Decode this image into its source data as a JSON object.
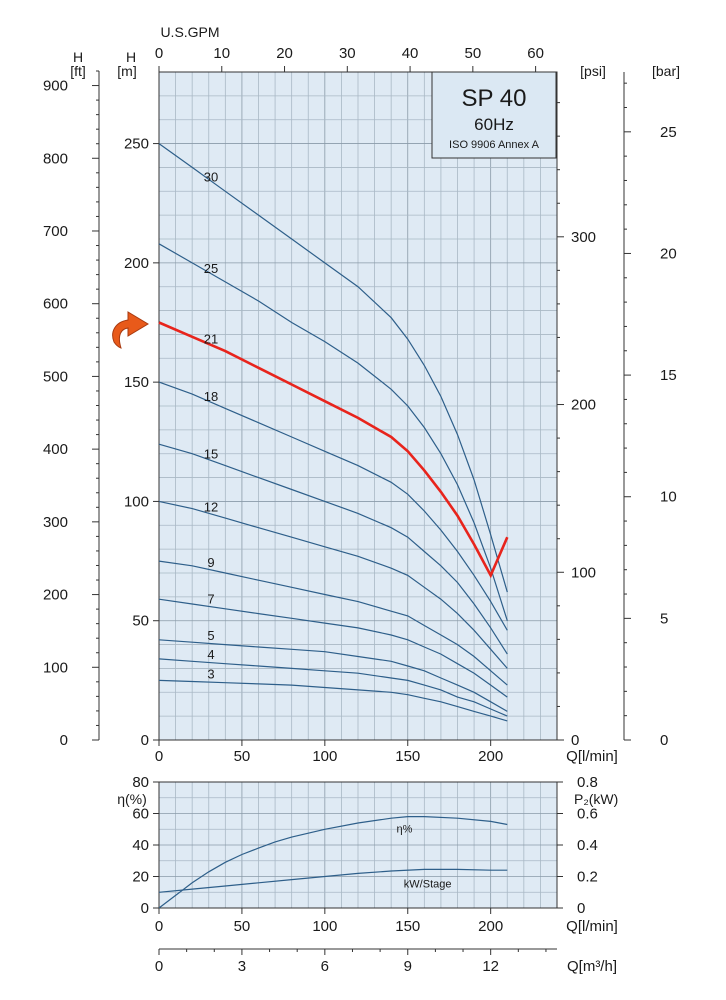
{
  "chart_data": [
    {
      "type": "line",
      "title": "SP 40",
      "subtitle": "60Hz",
      "note": "ISO 9906 Annex A",
      "xlabel": "Q[l/min]",
      "xlim": [
        0,
        240
      ],
      "xticks": [
        0,
        50,
        100,
        150,
        200
      ],
      "top_axis": {
        "label": "U.S.GPM",
        "ticks": [
          0,
          10,
          20,
          30,
          40,
          50,
          60
        ],
        "conversion_to_lmin": 3.785
      },
      "ylabel_m": "H\n[m]",
      "ylabel_m_parts": [
        "H",
        "[m]"
      ],
      "ylim": [
        0,
        280
      ],
      "yticks_m": [
        0,
        50,
        100,
        150,
        200,
        250
      ],
      "ylabel_ft": [
        "H",
        "[ft]"
      ],
      "yticks_ft": [
        0,
        100,
        200,
        300,
        400,
        500,
        600,
        700,
        800,
        900
      ],
      "ylabel_psi": "[psi]",
      "yticks_psi": [
        0,
        100,
        200,
        300
      ],
      "ylabel_bar": "[bar]",
      "yticks_bar": [
        0,
        5,
        10,
        15,
        20,
        25
      ],
      "grid": true,
      "highlight_color": "#e8241c",
      "curve_color": "#2e5f8a",
      "series": [
        {
          "name": "30",
          "highlight": false,
          "x": [
            0,
            20,
            40,
            60,
            80,
            100,
            120,
            140,
            150,
            160,
            170,
            180,
            190,
            200,
            210
          ],
          "y": [
            250,
            240,
            230,
            220,
            210,
            200,
            190,
            177,
            168,
            157,
            144,
            128,
            109,
            86,
            62
          ]
        },
        {
          "name": "25",
          "highlight": false,
          "x": [
            0,
            20,
            40,
            60,
            80,
            100,
            120,
            140,
            150,
            160,
            170,
            180,
            190,
            200,
            210
          ],
          "y": [
            208,
            200,
            192,
            184,
            175,
            167,
            158,
            147,
            140,
            131,
            120,
            107,
            91,
            72,
            50
          ]
        },
        {
          "name": "21",
          "highlight": true,
          "x": [
            0,
            20,
            40,
            60,
            80,
            100,
            120,
            140,
            150,
            160,
            170,
            180,
            190,
            200,
            210
          ],
          "y": [
            175,
            169,
            163,
            156,
            149,
            142,
            135,
            127,
            121,
            113,
            104,
            94,
            82,
            69,
            85
          ]
        },
        {
          "name": "18",
          "highlight": false,
          "x": [
            0,
            20,
            40,
            60,
            80,
            100,
            120,
            140,
            150,
            160,
            170,
            180,
            190,
            200,
            210
          ],
          "y": [
            150,
            145,
            139,
            133,
            127,
            121,
            115,
            108,
            103,
            96,
            88,
            79,
            69,
            58,
            46
          ]
        },
        {
          "name": "15",
          "highlight": false,
          "x": [
            0,
            20,
            40,
            60,
            80,
            100,
            120,
            140,
            150,
            160,
            170,
            180,
            190,
            200,
            210
          ],
          "y": [
            124,
            120,
            115,
            110,
            105,
            100,
            95,
            89,
            85,
            79,
            73,
            66,
            57,
            47,
            36
          ]
        },
        {
          "name": "12",
          "highlight": false,
          "x": [
            0,
            20,
            40,
            60,
            80,
            100,
            120,
            140,
            150,
            160,
            170,
            180,
            190,
            200,
            210
          ],
          "y": [
            100,
            97,
            93,
            89,
            85,
            81,
            77,
            72,
            69,
            64,
            59,
            53,
            46,
            38,
            30
          ]
        },
        {
          "name": "9",
          "highlight": false,
          "x": [
            0,
            20,
            40,
            60,
            80,
            100,
            120,
            140,
            150,
            160,
            170,
            180,
            190,
            200,
            210
          ],
          "y": [
            75,
            73,
            70,
            67,
            64,
            61,
            58,
            54,
            52,
            48,
            44,
            40,
            35,
            29,
            23
          ]
        },
        {
          "name": "7",
          "highlight": false,
          "x": [
            0,
            20,
            40,
            60,
            80,
            100,
            120,
            140,
            150,
            160,
            170,
            180,
            190,
            200,
            210
          ],
          "y": [
            59,
            57,
            55,
            53,
            51,
            49,
            47,
            44,
            42,
            39,
            36,
            32,
            28,
            23,
            18
          ]
        },
        {
          "name": "5",
          "highlight": false,
          "x": [
            0,
            20,
            40,
            60,
            80,
            100,
            120,
            140,
            150,
            160,
            170,
            180,
            190,
            200,
            210
          ],
          "y": [
            42,
            41,
            40,
            39,
            38,
            37,
            35,
            33,
            31,
            29,
            26,
            23,
            20,
            16,
            12
          ]
        },
        {
          "name": "4",
          "highlight": false,
          "x": [
            0,
            20,
            40,
            60,
            80,
            100,
            120,
            140,
            150,
            160,
            170,
            180,
            190,
            200,
            210
          ],
          "y": [
            34,
            33,
            32,
            31,
            30,
            29,
            28,
            26,
            25,
            23,
            21,
            18,
            16,
            13,
            10
          ]
        },
        {
          "name": "3",
          "highlight": false,
          "x": [
            0,
            20,
            40,
            60,
            80,
            100,
            120,
            140,
            150,
            160,
            170,
            180,
            190,
            200,
            210
          ],
          "y": [
            25,
            24.5,
            24,
            23.5,
            23,
            22,
            21,
            20,
            19,
            17.5,
            16,
            14,
            12,
            10,
            8
          ]
        }
      ]
    },
    {
      "type": "line",
      "xlabel": "Q[l/min]",
      "xlim": [
        0,
        240
      ],
      "xticks": [
        0,
        50,
        100,
        150,
        200
      ],
      "ylabel_left": "η(%)",
      "ylim_left": [
        0,
        80
      ],
      "yticks_left": [
        0,
        20,
        40,
        60,
        80
      ],
      "ylabel_right": "P₂(kW)",
      "ylim_right": [
        0,
        0.8
      ],
      "yticks_right": [
        0,
        0.2,
        0.4,
        0.6,
        0.8
      ],
      "bottom_axis": {
        "label": "Q[m³/h]",
        "ticks": [
          0,
          3,
          6,
          9,
          12
        ],
        "conversion_to_lmin": 16.667
      },
      "grid": true,
      "series": [
        {
          "name": "η%",
          "axis": "left",
          "x": [
            0,
            10,
            20,
            30,
            40,
            50,
            60,
            70,
            80,
            100,
            120,
            140,
            150,
            160,
            180,
            200,
            210
          ],
          "y": [
            0,
            8,
            16,
            23,
            29,
            34,
            38,
            42,
            45,
            50,
            54,
            57,
            58,
            58,
            57,
            55,
            53
          ]
        },
        {
          "name": "kW/Stage",
          "axis": "right",
          "x": [
            0,
            20,
            40,
            60,
            80,
            100,
            120,
            140,
            160,
            180,
            200,
            210
          ],
          "y": [
            0.1,
            0.12,
            0.14,
            0.16,
            0.18,
            0.2,
            0.22,
            0.235,
            0.245,
            0.245,
            0.24,
            0.24
          ]
        }
      ]
    }
  ]
}
